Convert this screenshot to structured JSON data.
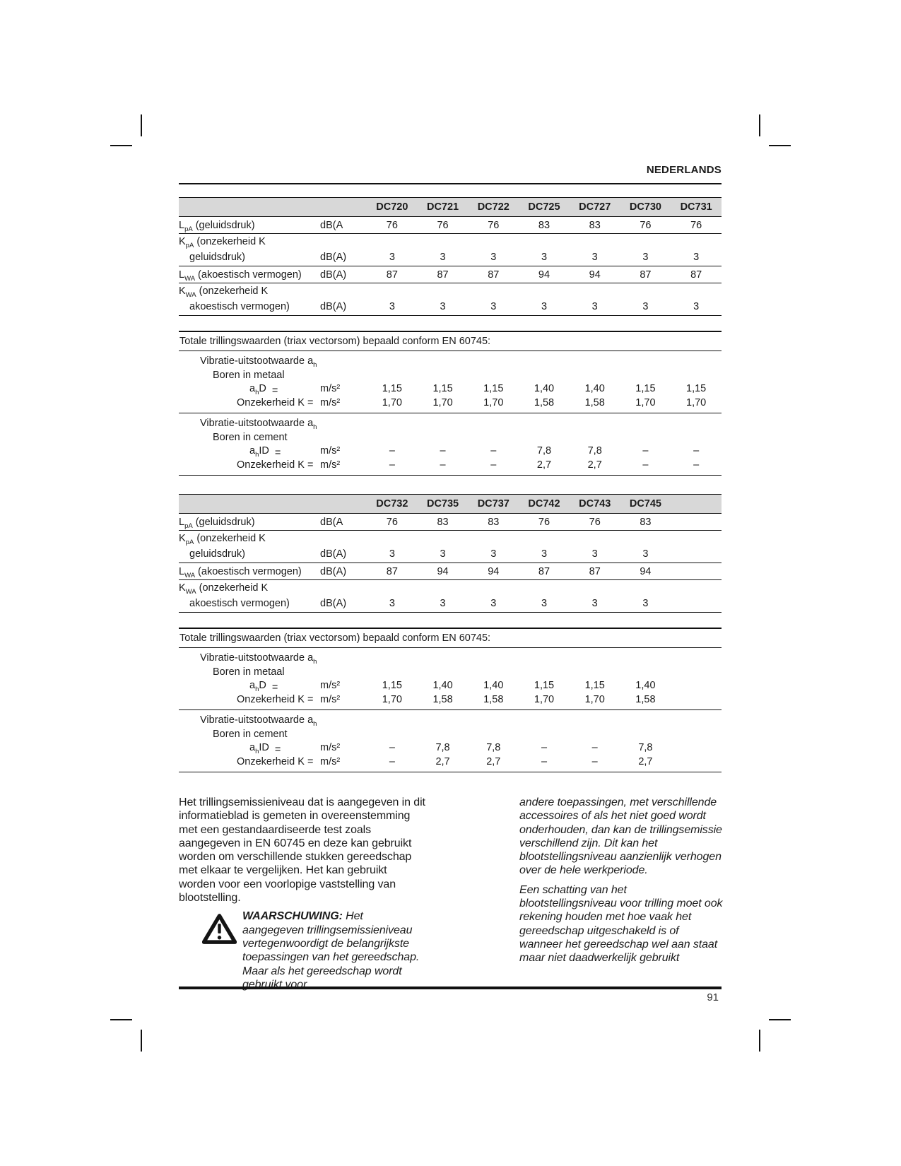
{
  "page": {
    "header": "NEDERLANDS",
    "page_number": "91"
  },
  "colors": {
    "band": "#d8d8d8",
    "ink": "#1b1b1b"
  },
  "table1": {
    "models": [
      "DC720",
      "DC721",
      "DC722",
      "DC725",
      "DC727",
      "DC730",
      "DC731"
    ],
    "sound_rows": [
      {
        "label_main": "L",
        "label_sub": "pA",
        "label_rest": " (geluidsdruk)",
        "unit": "dB(A",
        "values": [
          "76",
          "76",
          "76",
          "83",
          "83",
          "76",
          "76"
        ]
      },
      {
        "label_main": "K",
        "label_sub": "pA",
        "label_rest": " (onzekerheid K",
        "line2": "geluidsdruk)",
        "unit": "dB(A)",
        "values": [
          "3",
          "3",
          "3",
          "3",
          "3",
          "3",
          "3"
        ]
      },
      {
        "label_main": "L",
        "label_sub": "WA",
        "label_rest": " (akoestisch vermogen)",
        "unit": "dB(A)",
        "values": [
          "87",
          "87",
          "87",
          "94",
          "94",
          "87",
          "87"
        ]
      },
      {
        "label_main": "K",
        "label_sub": "WA",
        "label_rest": " (onzekerheid K",
        "line2": "akoestisch vermogen)",
        "unit": "dB(A)",
        "values": [
          "3",
          "3",
          "3",
          "3",
          "3",
          "3",
          "3"
        ]
      }
    ],
    "vibration": {
      "title": "Totale trillingswaarden (triax vectorsom) bepaald conform EN 60745:",
      "groups": [
        {
          "heading_main": "Vibratie-uitstootwaarde a",
          "heading_sub": "h",
          "subheading": "Boren in metaal",
          "rows": [
            {
              "label_main": "a",
              "label_sub": "h",
              "label_rest": "D",
              "label_eq": "=",
              "unit": "m/s²",
              "values": [
                "1,15",
                "1,15",
                "1,15",
                "1,40",
                "1,40",
                "1,15",
                "1,15"
              ]
            },
            {
              "label": "Onzekerheid K =",
              "unit": "m/s²",
              "values": [
                "1,70",
                "1,70",
                "1,70",
                "1,58",
                "1,58",
                "1,70",
                "1,70"
              ]
            }
          ]
        },
        {
          "heading_main": "Vibratie-uitstootwaarde a",
          "heading_sub": "h",
          "subheading": "Boren in cement",
          "rows": [
            {
              "label_main": "a",
              "label_sub": "h",
              "label_rest": "ID",
              "label_eq": "=",
              "unit": "m/s²",
              "values": [
                "–",
                "–",
                "–",
                "7,8",
                "7,8",
                "–",
                "–"
              ]
            },
            {
              "label": "Onzekerheid K =",
              "unit": "m/s²",
              "values": [
                "–",
                "–",
                "–",
                "2,7",
                "2,7",
                "–",
                "–"
              ]
            }
          ]
        }
      ]
    }
  },
  "table2": {
    "models": [
      "DC732",
      "DC735",
      "DC737",
      "DC742",
      "DC743",
      "DC745"
    ],
    "sound_rows": [
      {
        "label_main": "L",
        "label_sub": "pA",
        "label_rest": " (geluidsdruk)",
        "unit": "dB(A",
        "values": [
          "76",
          "83",
          "83",
          "76",
          "76",
          "83"
        ]
      },
      {
        "label_main": "K",
        "label_sub": "pA",
        "label_rest": " (onzekerheid K",
        "line2": "geluidsdruk)",
        "unit": "dB(A)",
        "values": [
          "3",
          "3",
          "3",
          "3",
          "3",
          "3"
        ]
      },
      {
        "label_main": "L",
        "label_sub": "WA",
        "label_rest": " (akoestisch vermogen)",
        "unit": "dB(A)",
        "values": [
          "87",
          "94",
          "94",
          "87",
          "87",
          "94"
        ]
      },
      {
        "label_main": "K",
        "label_sub": "WA",
        "label_rest": " (onzekerheid K",
        "line2": "akoestisch vermogen)",
        "unit": "dB(A)",
        "values": [
          "3",
          "3",
          "3",
          "3",
          "3",
          "3"
        ]
      }
    ],
    "vibration": {
      "title": "Totale trillingswaarden (triax vectorsom) bepaald conform EN 60745:",
      "groups": [
        {
          "heading_main": "Vibratie-uitstootwaarde a",
          "heading_sub": "h",
          "subheading": "Boren in metaal",
          "rows": [
            {
              "label_main": "a",
              "label_sub": "h",
              "label_rest": "D",
              "label_eq": "=",
              "unit": "m/s²",
              "values": [
                "1,15",
                "1,40",
                "1,40",
                "1,15",
                "1,15",
                "1,40"
              ]
            },
            {
              "label": "Onzekerheid K =",
              "unit": "m/s²",
              "values": [
                "1,70",
                "1,58",
                "1,58",
                "1,70",
                "1,70",
                "1,58"
              ]
            }
          ]
        },
        {
          "heading_main": "Vibratie-uitstootwaarde a",
          "heading_sub": "h",
          "subheading": "Boren in cement",
          "rows": [
            {
              "label_main": "a",
              "label_sub": "h",
              "label_rest": "ID",
              "label_eq": "=",
              "unit": "m/s²",
              "values": [
                "–",
                "7,8",
                "7,8",
                "–",
                "–",
                "7,8"
              ]
            },
            {
              "label": "Onzekerheid K =",
              "unit": "m/s²",
              "values": [
                "–",
                "2,7",
                "2,7",
                "–",
                "–",
                "2,7"
              ]
            }
          ]
        }
      ]
    }
  },
  "body": {
    "left_paragraph": "Het trillingsemissieniveau dat is aangegeven in dit informatieblad is gemeten in overeenstemming met een gestandaardiseerde test zoals aangegeven in EN 60745 en deze kan gebruikt worden om verschillende stukken gereedschap met elkaar te vergelijken. Het kan gebruikt worden voor een voorlopige vaststelling van blootstelling.",
    "warning_label": "WAARSCHUWING:",
    "warning_text": " Het aangegeven trillingsemissieniveau vertegenwoordigt de belangrijkste toepassingen van het gereedschap. Maar als het gereedschap wordt gebruikt voor",
    "right_paragraph_1": "andere toepassingen, met verschillende accessoires of als het niet goed wordt onderhouden, dan kan de trillingsemissie verschillend zijn. Dit kan het blootstellingsniveau aanzienlijk verhogen over de hele werkperiode.",
    "right_paragraph_2": "Een schatting van het blootstellingsniveau voor trilling moet ook rekening houden met hoe vaak het gereedschap uitgeschakeld is of wanneer het gereedschap wel aan staat maar niet daadwerkelijk gebruikt"
  }
}
